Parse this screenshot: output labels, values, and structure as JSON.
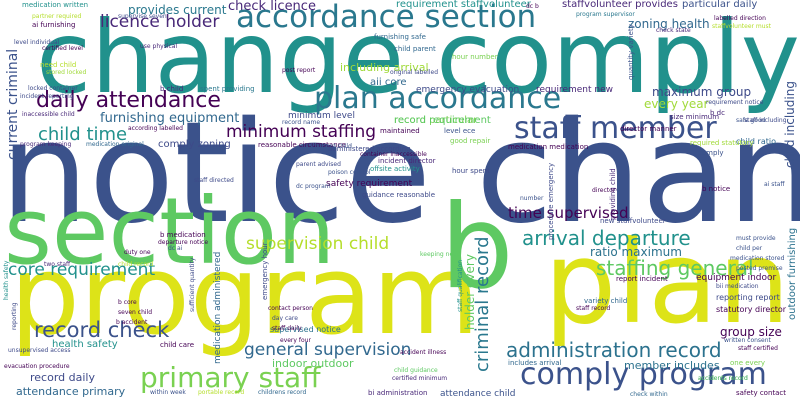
{
  "words": [
    {
      "text": "notice change",
      "color": "#3b528b"
    },
    {
      "text": "change comply",
      "color": "#21918c"
    },
    {
      "text": "program",
      "color": "#dde318"
    },
    {
      "text": "plan",
      "color": "#dde318"
    },
    {
      "text": "section",
      "color": "#5ec962"
    },
    {
      "text": "b",
      "color": "#5ec962"
    },
    {
      "text": "accordance section",
      "color": "#2a788e"
    },
    {
      "text": "plan accordance",
      "color": "#2a788e"
    },
    {
      "text": "staff member",
      "color": "#3b528b"
    },
    {
      "text": "daily attendance",
      "color": "#440154"
    },
    {
      "text": "comply program",
      "color": "#3b528b"
    },
    {
      "text": "primary staff",
      "color": "#7ad151"
    },
    {
      "text": "administration record",
      "color": "#2c728e"
    },
    {
      "text": "arrival departure",
      "color": "#21918c"
    },
    {
      "text": "staffing general",
      "color": "#5ec962"
    },
    {
      "text": "record check",
      "color": "#3b528b"
    },
    {
      "text": "general supervision",
      "color": "#31688e"
    },
    {
      "text": "supervision child",
      "color": "#b5de2b"
    },
    {
      "text": "core requirement",
      "color": "#21918c"
    },
    {
      "text": "criminal record",
      "color": "#2a788e"
    },
    {
      "text": "minimum staffing",
      "color": "#440154"
    },
    {
      "text": "child time",
      "color": "#21918c"
    },
    {
      "text": "licence holder",
      "color": "#482878"
    },
    {
      "text": "check licence",
      "color": "#482878"
    },
    {
      "text": "time supervised",
      "color": "#440154"
    },
    {
      "text": "furnishing equipment",
      "color": "#31688e"
    },
    {
      "text": "maximum group",
      "color": "#3e4a89"
    },
    {
      "text": "every year",
      "color": "#a0da39"
    },
    {
      "text": "record particular",
      "color": "#7ad151"
    },
    {
      "text": "requirement staffvolunteer",
      "color": "#21918c"
    },
    {
      "text": "staffvolunteer provides",
      "color": "#482878"
    },
    {
      "text": "provides current",
      "color": "#2a788e"
    },
    {
      "text": "current criminal",
      "color": "#3b528b"
    },
    {
      "text": "zoning health",
      "color": "#31688e"
    },
    {
      "text": "including arrival",
      "color": "#a0da39"
    },
    {
      "text": "emergency evacuation",
      "color": "#3e4a89"
    },
    {
      "text": "requirement new",
      "color": "#482878"
    },
    {
      "text": "aii core",
      "color": "#31688e"
    },
    {
      "text": "health safety",
      "color": "#21918c"
    },
    {
      "text": "record daily",
      "color": "#3e4a89"
    },
    {
      "text": "attendance primary",
      "color": "#31688e"
    },
    {
      "text": "attendance child",
      "color": "#3b528b"
    },
    {
      "text": "indoor outdoor",
      "color": "#5ec962"
    },
    {
      "text": "group size",
      "color": "#440154"
    },
    {
      "text": "holder every",
      "color": "#5ec962"
    },
    {
      "text": "ratio maximum",
      "color": "#2c728e"
    },
    {
      "text": "equipment indoor",
      "color": "#440154"
    },
    {
      "text": "member includes",
      "color": "#2c728e"
    },
    {
      "text": "medication administered",
      "color": "#31688e"
    },
    {
      "text": "comply zoning",
      "color": "#3e4a89"
    },
    {
      "text": "record requirement",
      "color": "#5ec962"
    },
    {
      "text": "minimum level",
      "color": "#3e4a89"
    },
    {
      "text": "outdoor furnishing",
      "color": "#2c728e"
    },
    {
      "text": "child including",
      "color": "#3b528b"
    },
    {
      "text": "safety requirement",
      "color": "#440154"
    },
    {
      "text": "supervised notice",
      "color": "#2c728e"
    },
    {
      "text": "child ratio",
      "color": "#31688e"
    },
    {
      "text": "statutory director",
      "color": "#440154"
    },
    {
      "text": "reporting report",
      "color": "#3e4a89"
    },
    {
      "text": "medication written",
      "color": "#21918c"
    },
    {
      "text": "furnishing safe",
      "color": "#31688e"
    },
    {
      "text": "child parent",
      "color": "#31688e"
    },
    {
      "text": "b child",
      "color": "#482878"
    },
    {
      "text": "b notice",
      "color": "#440154"
    },
    {
      "text": "dc ai",
      "color": "#3b528b"
    },
    {
      "text": "b dc",
      "color": "#482878"
    },
    {
      "text": "level ece",
      "color": "#3b528b"
    },
    {
      "text": "hour spent",
      "color": "#3e4a89"
    },
    {
      "text": "ai furnishing",
      "color": "#440154"
    },
    {
      "text": "good repair",
      "color": "#7ad151"
    },
    {
      "text": "bi administration",
      "color": "#482878"
    },
    {
      "text": "includes arrival",
      "color": "#31688e"
    },
    {
      "text": "within week",
      "color": "#3b528b"
    },
    {
      "text": "portable record",
      "color": "#b5de2b"
    },
    {
      "text": "childrens record",
      "color": "#31688e"
    },
    {
      "text": "certified minimum",
      "color": "#482878"
    },
    {
      "text": "safety contact",
      "color": "#440154"
    },
    {
      "text": "check within",
      "color": "#31688e"
    },
    {
      "text": "accidents record",
      "color": "#2a788e"
    },
    {
      "text": "variety child",
      "color": "#31688e"
    },
    {
      "text": "spent providing",
      "color": "#2a788e"
    },
    {
      "text": "according labelled",
      "color": "#440154"
    },
    {
      "text": "medication medication",
      "color": "#440154"
    },
    {
      "text": "reasonable circumstance",
      "color": "#440154"
    },
    {
      "text": "administered according",
      "color": "#3e4a89"
    },
    {
      "text": "offsite activity",
      "color": "#21918c"
    },
    {
      "text": "guidance reasonable",
      "color": "#3e4a89"
    },
    {
      "text": "consent child",
      "color": "#3b528b"
    },
    {
      "text": "poison control",
      "color": "#3b528b"
    },
    {
      "text": "incident director",
      "color": "#482878"
    },
    {
      "text": "director manner",
      "color": "#440154"
    },
    {
      "text": "size minimum",
      "color": "#482878"
    },
    {
      "text": "required statutory",
      "color": "#a0da39"
    },
    {
      "text": "new staffvolunteer",
      "color": "#3e4a89"
    },
    {
      "text": "must provide",
      "color": "#3b528b"
    },
    {
      "text": "child per",
      "color": "#3b528b"
    },
    {
      "text": "medication stored",
      "color": "#3b528b"
    },
    {
      "text": "posted premise",
      "color": "#3b528b"
    },
    {
      "text": "staff certified",
      "color": "#440154"
    },
    {
      "text": "written consent",
      "color": "#3b528b"
    },
    {
      "text": "accidents record",
      "color": "#5ec962"
    },
    {
      "text": "report incident",
      "color": "#440154"
    },
    {
      "text": "bii medication",
      "color": "#3e4a89"
    },
    {
      "text": "labelled direction",
      "color": "#440154"
    },
    {
      "text": "original labelled",
      "color": "#3e4a89"
    },
    {
      "text": "safe good",
      "color": "#3b528b"
    },
    {
      "text": "staffvolunteer must",
      "color": "#b5de2b"
    },
    {
      "text": "particular daily",
      "color": "#3b528b"
    },
    {
      "text": "partner required",
      "color": "#b5de2b"
    },
    {
      "text": "hour number",
      "color": "#7ad151"
    },
    {
      "text": "level individual",
      "color": "#3e4a89"
    },
    {
      "text": "maintained",
      "color": "#440154"
    },
    {
      "text": "program supervisor",
      "color": "#2a788e"
    },
    {
      "text": "container inaccessible",
      "color": "#440154"
    },
    {
      "text": "parent advised",
      "color": "#3e4a89"
    },
    {
      "text": "inaccessible child",
      "color": "#482878"
    },
    {
      "text": "program keeping",
      "color": "#482878"
    },
    {
      "text": "emergency hour",
      "color": "#3e4a89"
    },
    {
      "text": "seven child",
      "color": "#440154"
    },
    {
      "text": "b accident",
      "color": "#440154"
    },
    {
      "text": "child care",
      "color": "#440154"
    },
    {
      "text": "staff daily",
      "color": "#440154"
    },
    {
      "text": "every four",
      "color": "#440154"
    },
    {
      "text": "day care",
      "color": "#3e4a89"
    },
    {
      "text": "contact person",
      "color": "#440154"
    },
    {
      "text": "child guidance",
      "color": "#5ec962"
    },
    {
      "text": "accident illness",
      "color": "#440154"
    },
    {
      "text": "unsupervised access",
      "color": "#3e4a89"
    },
    {
      "text": "evacuation procedure",
      "color": "#440154"
    },
    {
      "text": "reporting",
      "color": "#3e4a89"
    },
    {
      "text": "providing child",
      "color": "#482878"
    },
    {
      "text": "one every",
      "color": "#7ad151"
    },
    {
      "text": "two staff",
      "color": "#482878"
    },
    {
      "text": "procedure emergency",
      "color": "#3e4a89"
    },
    {
      "text": "staff qualification",
      "color": "#21918c"
    },
    {
      "text": "quantity variety",
      "color": "#3b528b"
    },
    {
      "text": "staff record",
      "color": "#440154"
    },
    {
      "text": "staff including",
      "color": "#3e4a89"
    },
    {
      "text": "medication original",
      "color": "#31688e"
    },
    {
      "text": "b medication",
      "color": "#440154"
    },
    {
      "text": "departure notice",
      "color": "#440154"
    },
    {
      "text": "ai staff",
      "color": "#3b528b"
    },
    {
      "text": "certified level",
      "color": "#440154"
    },
    {
      "text": "need child",
      "color": "#b5de2b"
    },
    {
      "text": "stored locked",
      "color": "#a0da39"
    },
    {
      "text": "locked container",
      "color": "#3e4a89"
    },
    {
      "text": "incident reporting",
      "color": "#3e4a89"
    },
    {
      "text": "use physical",
      "color": "#482878"
    },
    {
      "text": "post report",
      "color": "#440154"
    },
    {
      "text": "record name",
      "color": "#3b528b"
    },
    {
      "text": "supervise seven",
      "color": "#3e4a89"
    },
    {
      "text": "dc b",
      "color": "#440154"
    },
    {
      "text": "requirement notice",
      "color": "#3e4a89"
    },
    {
      "text": "check state",
      "color": "#482878"
    },
    {
      "text": "child record",
      "color": "#b5de2b"
    },
    {
      "text": "keeping need",
      "color": "#5ec962"
    },
    {
      "text": "duty one",
      "color": "#440154"
    },
    {
      "text": "health safety",
      "color": "#21918c"
    },
    {
      "text": "b core",
      "color": "#440154"
    },
    {
      "text": "staff directed",
      "color": "#3e4a89"
    },
    {
      "text": "comply",
      "color": "#3b528b"
    },
    {
      "text": "number",
      "color": "#3b528b"
    },
    {
      "text": "sufficient quantity",
      "color": "#3e4a89"
    },
    {
      "text": "dc program",
      "color": "#3b528b"
    },
    {
      "text": "director",
      "color": "#440154"
    }
  ]
}
